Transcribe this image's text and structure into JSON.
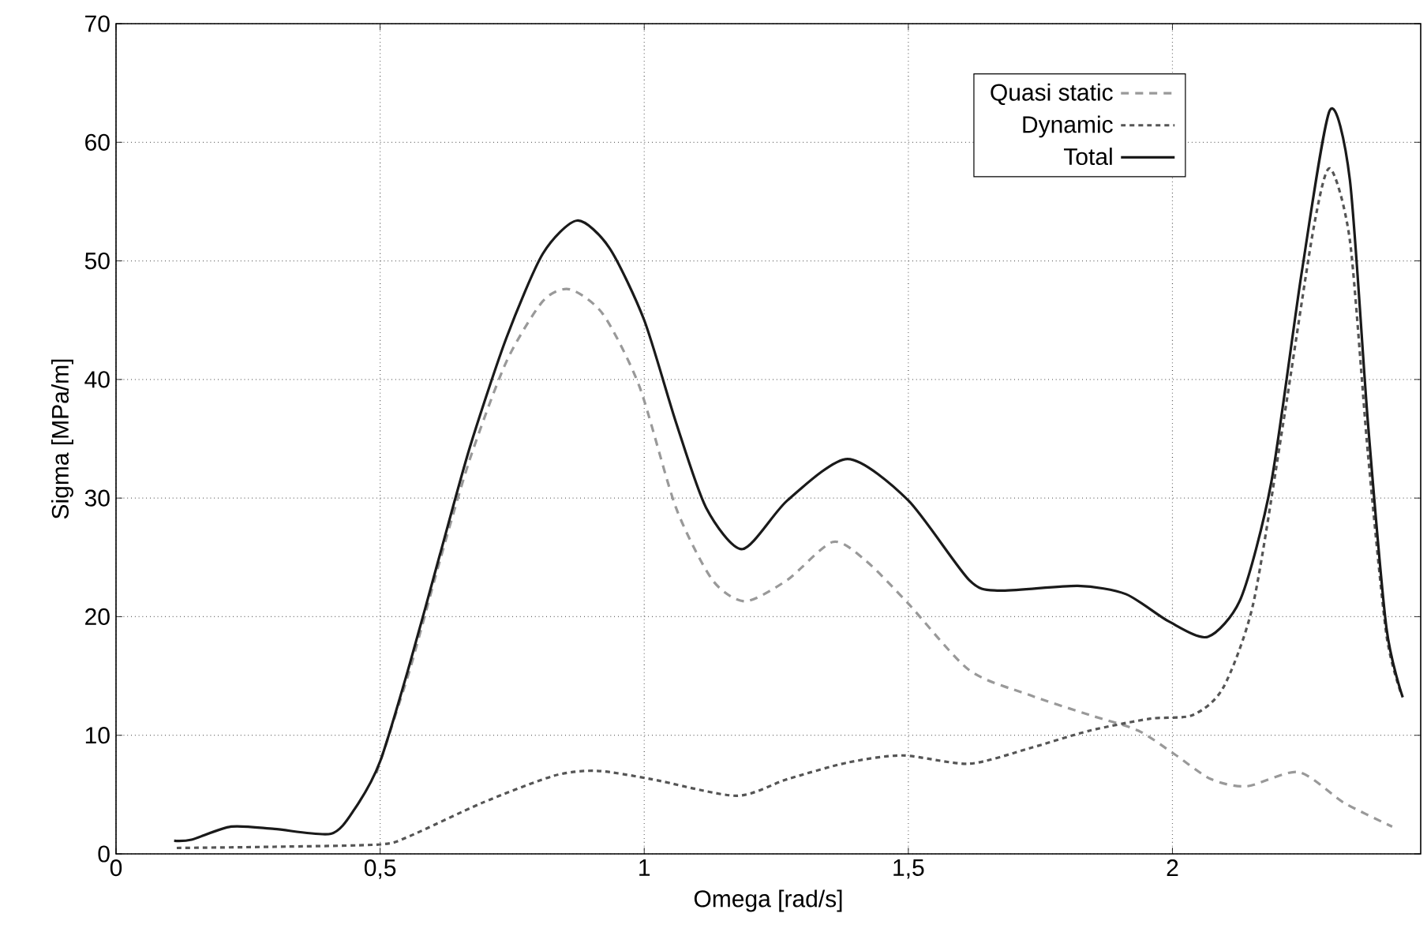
{
  "chart_data": {
    "type": "line",
    "xlabel": "Omega  [rad/s]",
    "ylabel": "Sigma [MPa/m]",
    "xlim": [
      0,
      2.47
    ],
    "ylim": [
      0,
      70
    ],
    "xticks": [
      {
        "value": 0,
        "label": "0"
      },
      {
        "value": 0.5,
        "label": "0,5"
      },
      {
        "value": 1,
        "label": "1"
      },
      {
        "value": 1.5,
        "label": "1,5"
      },
      {
        "value": 2,
        "label": "2"
      }
    ],
    "yticks": [
      0,
      10,
      20,
      30,
      40,
      50,
      60,
      70
    ],
    "grid": true,
    "legend": "top right",
    "series": [
      {
        "name": "Quasi static",
        "color": "#999999",
        "line_style": "dashed",
        "x": [
          0.493,
          0.556,
          0.613,
          0.67,
          0.739,
          0.808,
          0.859,
          0.922,
          0.991,
          1.06,
          1.129,
          1.191,
          1.271,
          1.357,
          1.42,
          1.5,
          1.615,
          1.729,
          1.844,
          1.935,
          2.004,
          2.073,
          2.141,
          2.239,
          2.325,
          2.416
        ],
        "values": [
          6.8,
          15.5,
          24.7,
          33.3,
          41.5,
          46.6,
          47.6,
          45.5,
          39.4,
          29.2,
          23.1,
          21.3,
          23.1,
          26.3,
          24.7,
          21.1,
          15.5,
          13.4,
          11.7,
          10.4,
          8.4,
          6.3,
          5.7,
          6.9,
          4.3,
          2.3
        ]
      },
      {
        "name": "Dynamic",
        "color": "#555555",
        "line_style": "dotted",
        "x": [
          0.115,
          0.3,
          0.5,
          0.556,
          0.693,
          0.83,
          0.911,
          1.014,
          1.174,
          1.271,
          1.385,
          1.489,
          1.615,
          1.729,
          1.844,
          1.958,
          2.038,
          2.096,
          2.153,
          2.21,
          2.267,
          2.298,
          2.336,
          2.37,
          2.405,
          2.434
        ],
        "values": [
          0.5,
          0.6,
          0.8,
          1.5,
          4.3,
          6.6,
          7.0,
          6.3,
          4.9,
          6.3,
          7.7,
          8.3,
          7.6,
          8.9,
          10.4,
          11.4,
          11.7,
          14,
          21.1,
          36.4,
          52.7,
          57.8,
          51.7,
          33.8,
          18.5,
          13.4
        ]
      },
      {
        "name": "Total",
        "color": "#1a1a1a",
        "line_style": "solid",
        "x": [
          0.11,
          0.143,
          0.218,
          0.3,
          0.407,
          0.452,
          0.5,
          0.556,
          0.613,
          0.67,
          0.739,
          0.808,
          0.873,
          0.934,
          1.0,
          1.06,
          1.117,
          1.186,
          1.271,
          1.385,
          1.5,
          1.615,
          1.672,
          1.821,
          1.912,
          1.993,
          2.067,
          2.13,
          2.187,
          2.245,
          2.298,
          2.336,
          2.37,
          2.405,
          2.436
        ],
        "values": [
          1.1,
          1.2,
          2.3,
          2.1,
          1.7,
          3.8,
          7.8,
          16,
          25.2,
          34.3,
          43.5,
          50.6,
          53.4,
          51.1,
          45,
          36.4,
          29.2,
          25.7,
          29.8,
          33.3,
          29.8,
          23.1,
          22.2,
          22.6,
          21.9,
          19.6,
          18.3,
          21.6,
          31.3,
          49.1,
          62.7,
          56.8,
          36.4,
          19.1,
          13.2
        ]
      }
    ]
  }
}
